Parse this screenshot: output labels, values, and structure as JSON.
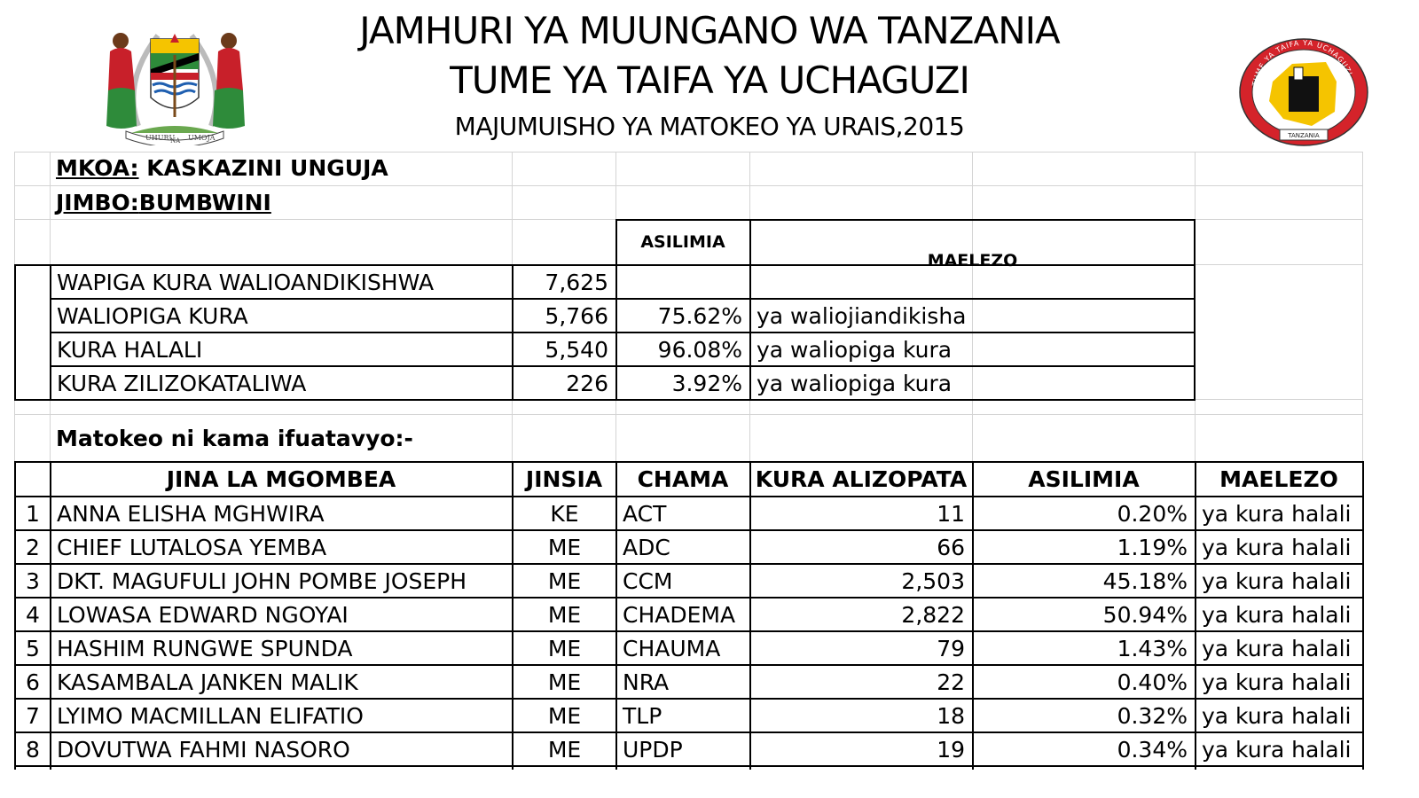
{
  "header": {
    "title_line1": "JAMHURI YA MUUNGANO WA TANZANIA",
    "title_line2": "TUME YA TAIFA YA UCHAGUZI",
    "title_line3": "MAJUMUISHO YA MATOKEO YA URAIS,2015",
    "coat_motto_left": "UHURU",
    "coat_motto_mid": "NA",
    "coat_motto_right": "UMOJA",
    "nec_ring_text": "TUME YA TAIFA YA UCHAGUZI",
    "nec_banner": "TANZANIA"
  },
  "region": {
    "mkoa_label": "MKOA:",
    "mkoa_value": "KASKAZINI UNGUJA",
    "jimbo_label": "JIMBO:",
    "jimbo_value": "BUMBWINI"
  },
  "summary": {
    "header_percent": "ASILIMIA",
    "header_notes": "MAELEZO",
    "rows": [
      {
        "label": "WAPIGA KURA WALIOANDIKISHWA",
        "value": "7,625",
        "percent": "",
        "note": ""
      },
      {
        "label": "WALIOPIGA KURA",
        "value": "5,766",
        "percent": "75.62%",
        "note": "ya waliojiandikisha"
      },
      {
        "label": "KURA HALALI",
        "value": "5,540",
        "percent": "96.08%",
        "note": "ya waliopiga kura"
      },
      {
        "label": "KURA ZILIZOKATALIWA",
        "value": "226",
        "percent": "3.92%",
        "note": "ya waliopiga kura"
      }
    ]
  },
  "results": {
    "intro": "Matokeo ni kama ifuatavyo:-",
    "headers": {
      "name": "JINA LA MGOMBEA",
      "gender": "JINSIA",
      "party": "CHAMA",
      "votes": "KURA ALIZOPATA",
      "percent": "ASILIMIA",
      "notes": "MAELEZO"
    },
    "rows": [
      {
        "no": "1",
        "name": "ANNA ELISHA MGHWIRA",
        "gender": "KE",
        "party": "ACT",
        "votes": "11",
        "percent": "0.20%",
        "note": "ya kura halali"
      },
      {
        "no": "2",
        "name": "CHIEF LUTALOSA YEMBA",
        "gender": "ME",
        "party": "ADC",
        "votes": "66",
        "percent": "1.19%",
        "note": "ya kura halali"
      },
      {
        "no": "3",
        "name": "DKT. MAGUFULI JOHN POMBE JOSEPH",
        "gender": "ME",
        "party": "CCM",
        "votes": "2,503",
        "percent": "45.18%",
        "note": "ya kura halali"
      },
      {
        "no": "4",
        "name": "LOWASA EDWARD NGOYAI",
        "gender": "ME",
        "party": "CHADEMA",
        "votes": "2,822",
        "percent": "50.94%",
        "note": "ya kura halali"
      },
      {
        "no": "5",
        "name": "HASHIM RUNGWE SPUNDA",
        "gender": "ME",
        "party": "CHAUMA",
        "votes": "79",
        "percent": "1.43%",
        "note": "ya kura halali"
      },
      {
        "no": "6",
        "name": "KASAMBALA JANKEN MALIK",
        "gender": "ME",
        "party": "NRA",
        "votes": "22",
        "percent": "0.40%",
        "note": "ya kura halali"
      },
      {
        "no": "7",
        "name": "LYIMO MACMILLAN ELIFATIO",
        "gender": "ME",
        "party": "TLP",
        "votes": "18",
        "percent": "0.32%",
        "note": "ya kura halali"
      },
      {
        "no": "8",
        "name": "DOVUTWA FAHMI NASORO",
        "gender": "ME",
        "party": "UPDP",
        "votes": "19",
        "percent": "0.34%",
        "note": "ya kura halali"
      }
    ]
  },
  "colors": {
    "nec_red": "#d4232a",
    "nec_yellow": "#f5c400",
    "coat_green": "#2e8b3a",
    "coat_red": "#c8202a",
    "coat_blue": "#1f5fb0",
    "gridline": "#d4d4d4"
  }
}
